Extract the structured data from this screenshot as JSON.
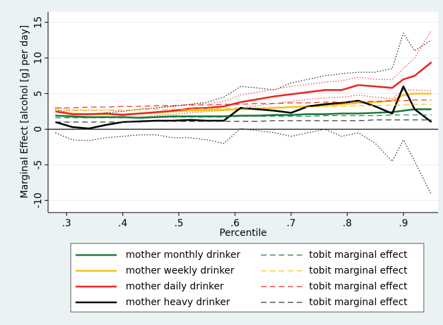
{
  "chart_data": {
    "type": "line",
    "x_label": "Percentile",
    "y_label": "Marginal Effect [alcohol [g] per day]",
    "x": [
      0.28,
      0.31,
      0.34,
      0.37,
      0.4,
      0.43,
      0.46,
      0.49,
      0.52,
      0.55,
      0.58,
      0.61,
      0.64,
      0.67,
      0.7,
      0.73,
      0.76,
      0.79,
      0.82,
      0.85,
      0.88,
      0.9,
      0.92,
      0.95
    ],
    "xlim": [
      0.267,
      0.962
    ],
    "xticks": [
      {
        "value": 0.3,
        "label": ".3"
      },
      {
        "value": 0.4,
        "label": ".4"
      },
      {
        "value": 0.5,
        "label": ".5"
      },
      {
        "value": 0.6,
        "label": ".6"
      },
      {
        "value": 0.7,
        "label": ".7"
      },
      {
        "value": 0.8,
        "label": ".8"
      },
      {
        "value": 0.9,
        "label": ".9"
      }
    ],
    "ylim": [
      -11.7,
      16.5
    ],
    "yticks": [
      -10,
      -5,
      0,
      5,
      10,
      15
    ],
    "grid": true,
    "series": [
      {
        "name": "mother monthly drinker",
        "color": "#1a7a3a",
        "style": "solid",
        "values": [
          1.9,
          1.8,
          1.7,
          1.7,
          1.7,
          1.6,
          1.7,
          1.8,
          1.8,
          1.8,
          1.8,
          1.9,
          1.9,
          2.0,
          2.0,
          2.1,
          2.1,
          2.2,
          2.2,
          2.3,
          2.4,
          2.6,
          2.8,
          2.8
        ]
      },
      {
        "name": "mother weekly drinker",
        "color": "#f2c318",
        "style": "solid",
        "values": [
          2.5,
          2.2,
          2.1,
          2.1,
          2.1,
          2.2,
          2.3,
          2.5,
          2.6,
          2.7,
          2.7,
          2.8,
          2.9,
          3.0,
          3.1,
          3.2,
          3.3,
          3.5,
          3.7,
          3.8,
          4.0,
          4.8,
          5.0,
          5.0
        ]
      },
      {
        "name": "mother daily drinker",
        "color": "#e8281e",
        "style": "solid",
        "values": [
          2.5,
          2.1,
          2.1,
          2.2,
          2.0,
          2.2,
          2.4,
          2.6,
          2.9,
          3.0,
          3.2,
          3.8,
          4.2,
          4.6,
          4.9,
          5.2,
          5.5,
          5.5,
          6.2,
          6.0,
          5.8,
          7.0,
          7.5,
          9.4
        ]
      },
      {
        "name": "mother heavy drinker",
        "color": "#000000",
        "style": "solid",
        "values": [
          1.0,
          0.3,
          0.1,
          0.6,
          1.0,
          1.1,
          1.2,
          1.2,
          1.3,
          1.2,
          1.2,
          3.0,
          2.8,
          2.6,
          2.3,
          3.2,
          3.5,
          3.7,
          4.0,
          3.2,
          2.2,
          6.0,
          2.8,
          1.0
        ]
      },
      {
        "name": "tobit marginal effect",
        "color": "#1a7a3a",
        "style": "dashed",
        "values": [
          1.6,
          1.6,
          1.6,
          1.6,
          1.6,
          1.6,
          1.7,
          1.7,
          1.7,
          1.7,
          1.7,
          1.8,
          1.8,
          1.8,
          1.8,
          1.8,
          1.9,
          1.9,
          1.9,
          1.9,
          2.0,
          2.0,
          2.0,
          2.0
        ]
      },
      {
        "name": "tobit marginal effect",
        "color": "#f2c318",
        "style": "dashed",
        "values": [
          2.6,
          2.6,
          2.6,
          2.7,
          2.7,
          2.7,
          2.8,
          2.8,
          2.8,
          2.9,
          2.9,
          3.0,
          3.0,
          3.0,
          3.1,
          3.1,
          3.2,
          3.2,
          3.3,
          3.3,
          3.4,
          3.4,
          3.5,
          3.5
        ]
      },
      {
        "name": "tobit marginal effect",
        "color": "#e8281e",
        "style": "dashed",
        "values": [
          3.0,
          3.0,
          3.1,
          3.1,
          3.2,
          3.2,
          3.3,
          3.3,
          3.4,
          3.4,
          3.5,
          3.5,
          3.6,
          3.6,
          3.7,
          3.7,
          3.8,
          3.8,
          3.9,
          3.9,
          4.0,
          4.0,
          4.1,
          4.1
        ]
      },
      {
        "name": "tobit marginal effect",
        "color": "#333333",
        "style": "dashed",
        "values": [
          1.0,
          1.0,
          1.0,
          1.0,
          1.0,
          1.0,
          1.1,
          1.1,
          1.1,
          1.1,
          1.1,
          1.1,
          1.1,
          1.2,
          1.2,
          1.2,
          1.2,
          1.2,
          1.2,
          1.3,
          1.3,
          1.3,
          1.3,
          1.3
        ]
      },
      {
        "color": "#000000",
        "style": "dotted",
        "values": [
          2.8,
          2.2,
          2.0,
          2.3,
          2.5,
          2.8,
          3.0,
          3.2,
          3.5,
          3.8,
          4.5,
          6.0,
          5.8,
          5.5,
          6.5,
          7.0,
          7.5,
          7.8,
          8.0,
          8.0,
          8.5,
          13.5,
          11.0,
          12.5
        ]
      },
      {
        "color": "#000000",
        "style": "dotted",
        "values": [
          -0.5,
          -1.5,
          -1.6,
          -1.2,
          -1.0,
          -0.8,
          -0.8,
          -1.2,
          -1.2,
          -1.5,
          -2.0,
          0.1,
          -0.2,
          -0.5,
          -1.0,
          -0.5,
          0.0,
          -1.0,
          -0.5,
          -2.0,
          -4.5,
          -1.5,
          -4.5,
          -9.2
        ]
      },
      {
        "color": "#e8281e",
        "style": "dotted",
        "values": [
          3.0,
          2.7,
          2.7,
          2.7,
          2.5,
          2.8,
          3.0,
          3.3,
          3.5,
          3.6,
          3.9,
          4.8,
          5.2,
          5.6,
          6.0,
          6.3,
          6.6,
          6.8,
          7.3,
          7.0,
          7.0,
          8.5,
          10.0,
          13.9
        ]
      },
      {
        "color": "#e8281e",
        "style": "dotted",
        "values": [
          2.0,
          1.6,
          1.6,
          1.7,
          1.6,
          1.7,
          1.9,
          2.1,
          2.3,
          2.5,
          2.6,
          3.0,
          3.3,
          3.6,
          3.9,
          4.2,
          4.4,
          4.5,
          4.8,
          4.5,
          4.3,
          5.5,
          5.5,
          5.4
        ]
      }
    ]
  }
}
